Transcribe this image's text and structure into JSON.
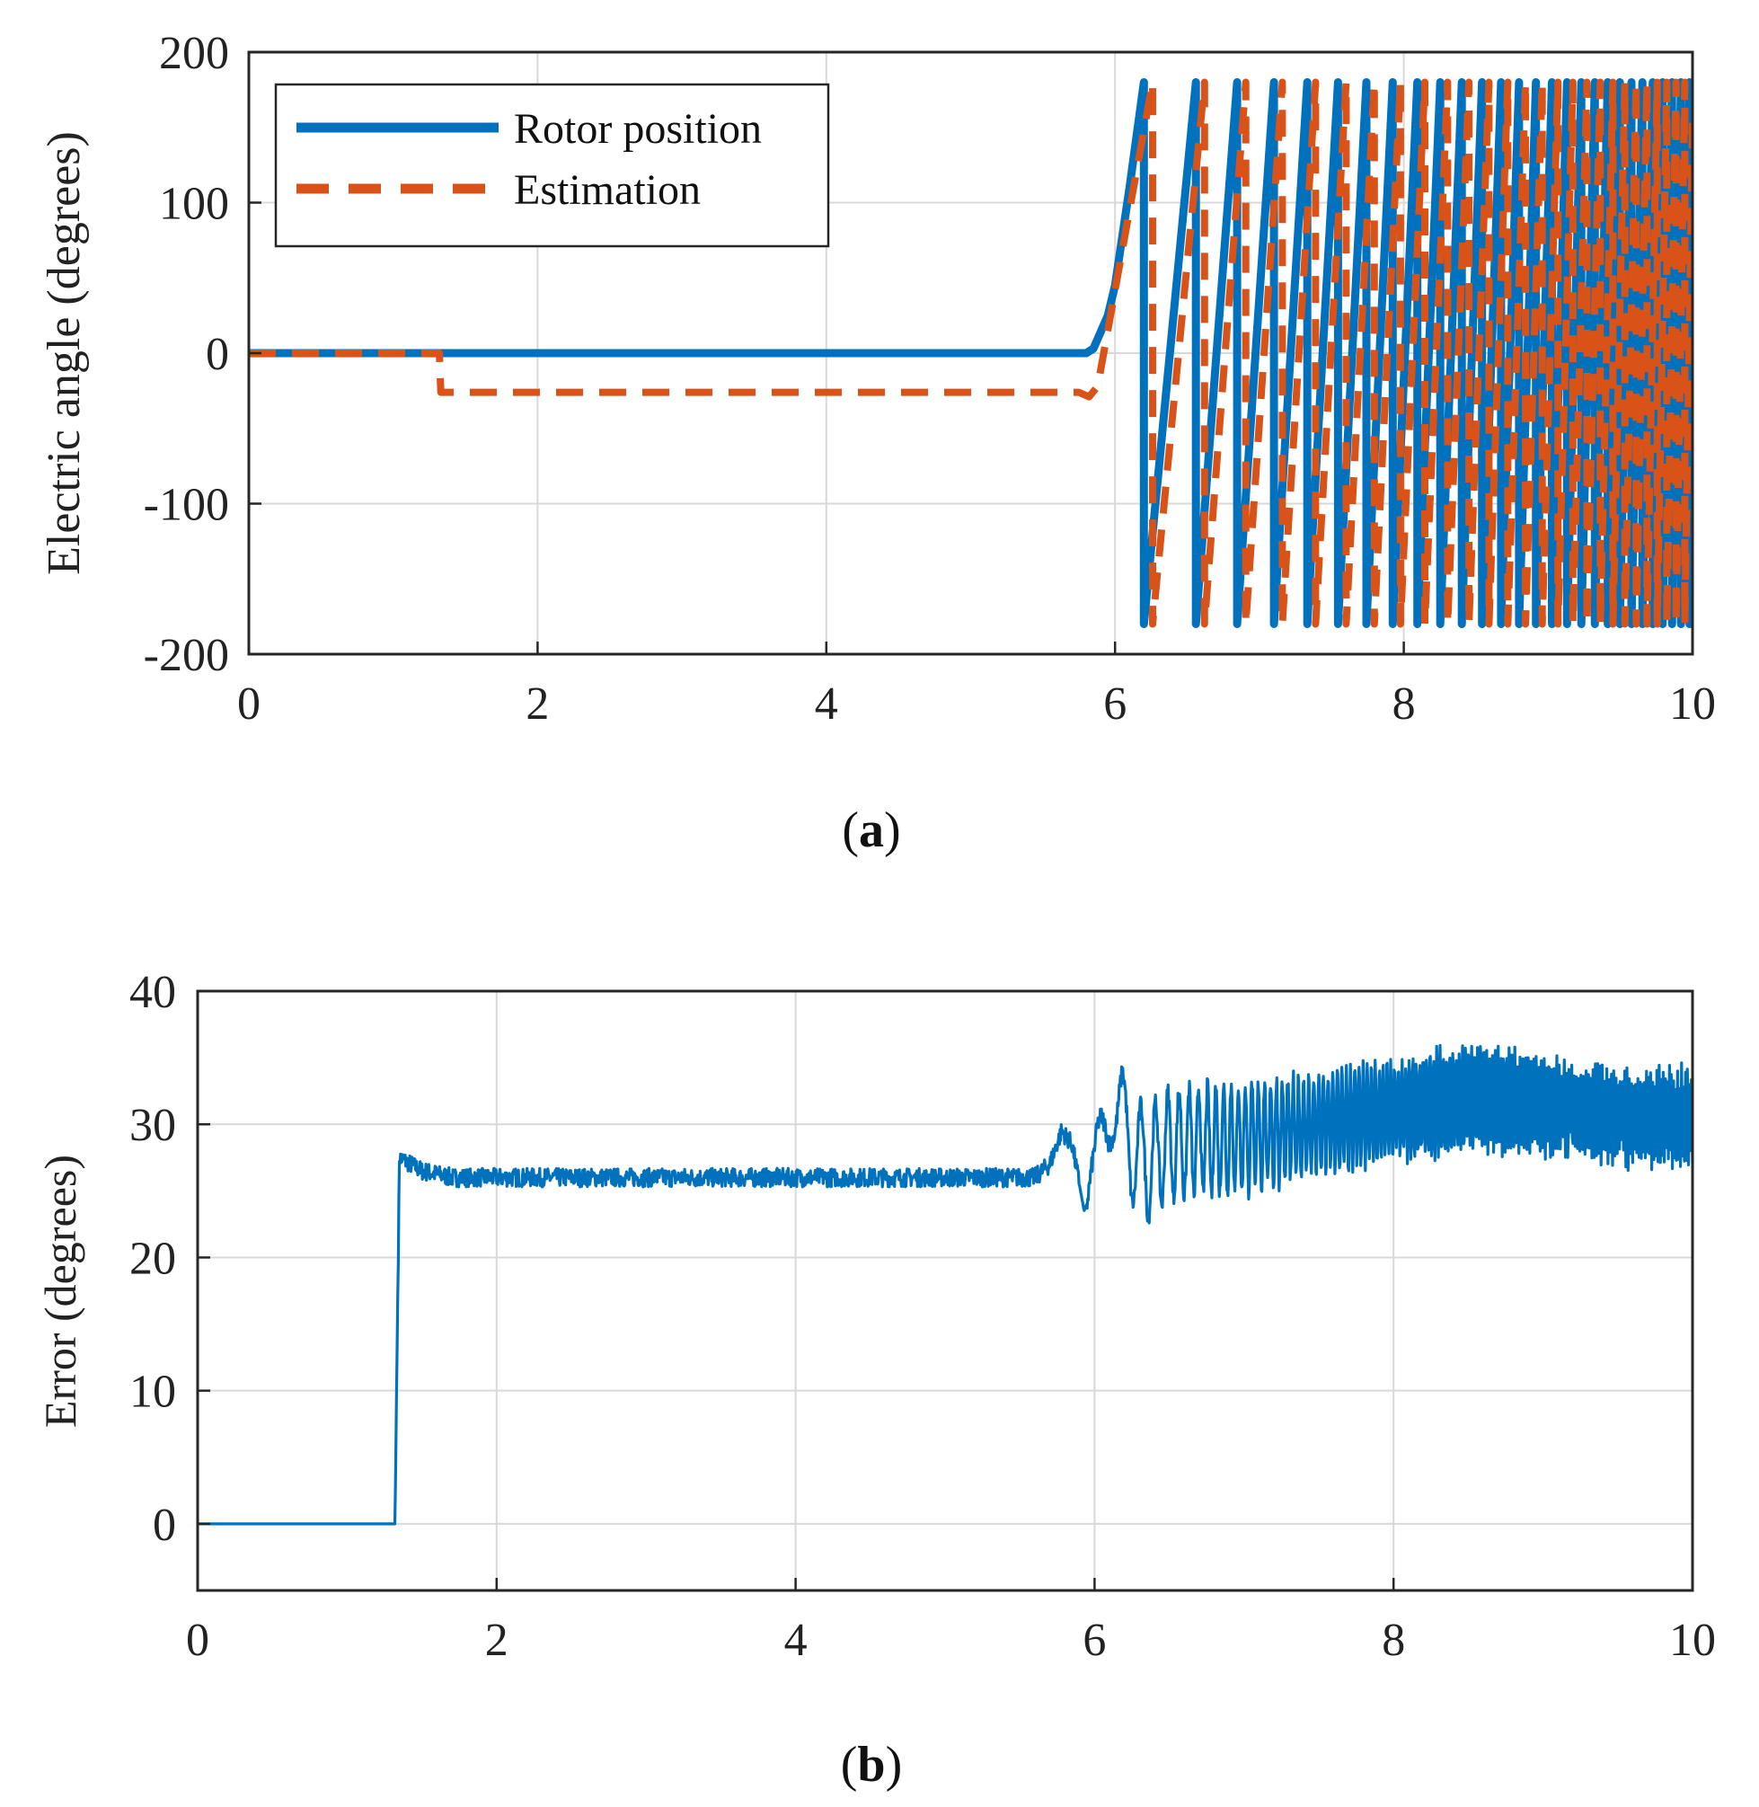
{
  "colors": {
    "rotor": "#0072BD",
    "estimation": "#D95319",
    "error": "#0072BD"
  },
  "chart_data": [
    {
      "id": "a",
      "type": "line",
      "caption_prefix": "(",
      "caption_bold": "a",
      "caption_suffix": ")",
      "xlabel": "",
      "ylabel": "Electric angle (degrees)",
      "xlim": [
        0,
        10
      ],
      "ylim": [
        -200,
        200
      ],
      "xticks": [
        0,
        2,
        4,
        6,
        8,
        10
      ],
      "yticks": [
        -200,
        -100,
        0,
        100,
        200
      ],
      "xtick_labels": [
        "0",
        "2",
        "4",
        "6",
        "8",
        "10"
      ],
      "ytick_labels": [
        "-200",
        "-100",
        "0",
        "100",
        "200"
      ],
      "grid": true,
      "legend_position": "top-left",
      "series": [
        {
          "name": "Rotor position",
          "style": "solid",
          "segments": [
            {
              "kind": "linear",
              "points": [
                [
                  0,
                  0
                ],
                [
                  5.8,
                  0
                ],
                [
                  5.85,
                  3
                ],
                [
                  5.95,
                  25
                ],
                [
                  6.0,
                  45
                ],
                [
                  6.1,
                  110
                ],
                [
                  6.2,
                  180
                ]
              ]
            },
            {
              "kind": "sawtooth",
              "t_start": 6.2,
              "t_end": 10.0,
              "period_start": 0.36,
              "period_end": 0.055,
              "low": -180,
              "high": 180
            }
          ]
        },
        {
          "name": "Estimation",
          "style": "dashed",
          "segments": [
            {
              "kind": "linear",
              "points": [
                [
                  0,
                  0
                ],
                [
                  1.32,
                  0
                ],
                [
                  1.33,
                  -26
                ],
                [
                  5.75,
                  -26
                ],
                [
                  5.82,
                  -29
                ],
                [
                  5.88,
                  -22
                ],
                [
                  6.26,
                  180
                ]
              ]
            },
            {
              "kind": "sawtooth",
              "t_start": 6.26,
              "t_end": 10.0,
              "period_start": 0.36,
              "period_end": 0.055,
              "low": -180,
              "high": 180
            }
          ]
        }
      ]
    },
    {
      "id": "b",
      "type": "line",
      "caption_prefix": "(",
      "caption_bold": "b",
      "caption_suffix": ")",
      "xlabel": "",
      "ylabel": "Error (degrees)",
      "xlim": [
        0,
        10
      ],
      "ylim": [
        -5,
        40
      ],
      "xticks": [
        0,
        2,
        4,
        6,
        8,
        10
      ],
      "yticks": [
        0,
        10,
        20,
        30,
        40
      ],
      "xtick_labels": [
        "0",
        "2",
        "4",
        "6",
        "8",
        "10"
      ],
      "ytick_labels": [
        "0",
        "10",
        "20",
        "30",
        "40"
      ],
      "grid": true,
      "series": [
        {
          "name": "Error",
          "style": "solid",
          "envelope": [
            [
              0,
              0
            ],
            [
              1.32,
              0
            ],
            [
              1.35,
              27.5
            ],
            [
              1.5,
              26.5
            ],
            [
              1.7,
              26
            ],
            [
              5.6,
              26
            ],
            [
              5.7,
              27
            ],
            [
              5.78,
              29.5
            ],
            [
              5.85,
              28.5
            ],
            [
              5.93,
              23.5
            ],
            [
              6.0,
              25.5
            ],
            [
              6.12,
              32.5
            ],
            [
              6.25,
              28
            ],
            [
              6.35,
              27
            ],
            [
              6.5,
              28.5
            ],
            [
              7.0,
              29
            ],
            [
              7.5,
              30
            ],
            [
              8.0,
              31
            ],
            [
              8.5,
              32
            ],
            [
              9.0,
              31.5
            ],
            [
              9.5,
              30.5
            ],
            [
              10,
              30.5
            ]
          ],
          "oscillation": [
            [
              5.95,
              3
            ],
            [
              6.3,
              4
            ],
            [
              7.0,
              4
            ],
            [
              8.0,
              3.5
            ],
            [
              8.6,
              3.8
            ],
            [
              9.2,
              3.2
            ],
            [
              10,
              3.5
            ]
          ]
        }
      ]
    }
  ]
}
